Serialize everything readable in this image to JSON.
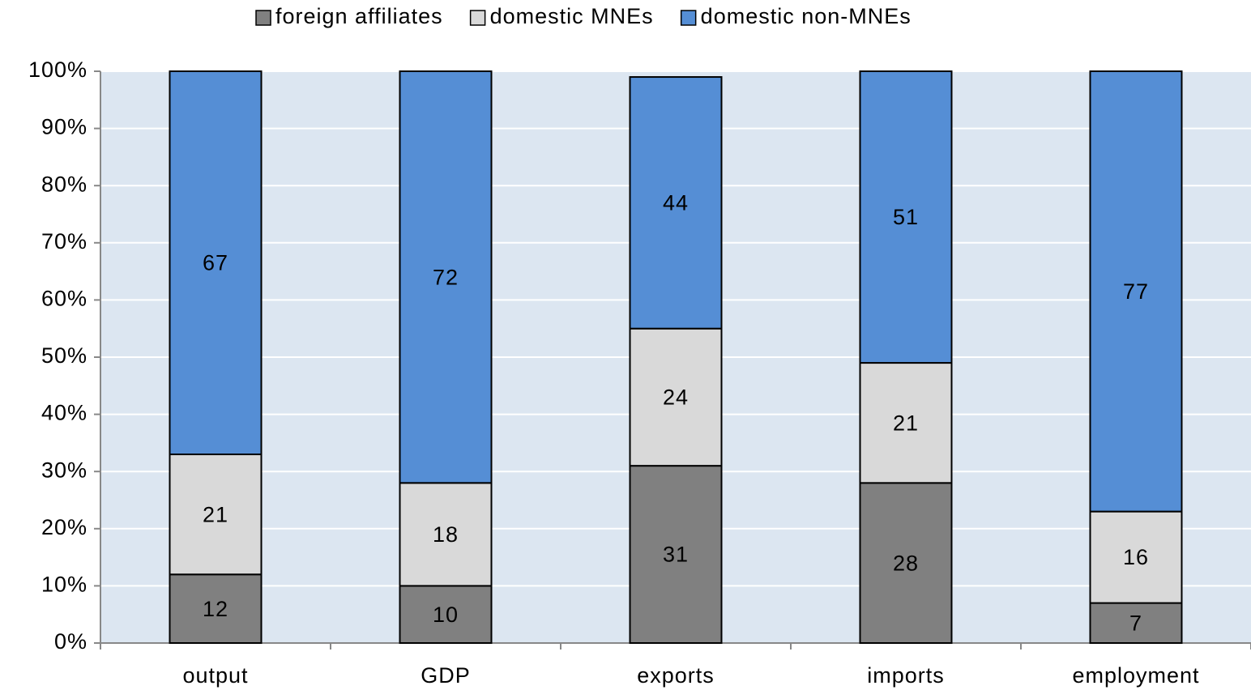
{
  "chart_data": {
    "type": "bar",
    "stacked": true,
    "categories": [
      "output",
      "GDP",
      "exports",
      "imports",
      "employment"
    ],
    "series": [
      {
        "name": "foreign affiliates",
        "color": "#808080",
        "values": [
          12,
          10,
          31,
          28,
          7
        ]
      },
      {
        "name": "domestic MNEs",
        "color": "#d9d9d9",
        "values": [
          21,
          18,
          24,
          21,
          16
        ]
      },
      {
        "name": "domestic non-MNEs",
        "color": "#558ed5",
        "values": [
          67,
          72,
          44,
          51,
          77
        ]
      }
    ],
    "ylim": [
      0,
      100
    ],
    "yticks": [
      {
        "value": 0,
        "label": "0%"
      },
      {
        "value": 10,
        "label": "10%"
      },
      {
        "value": 20,
        "label": "20%"
      },
      {
        "value": 30,
        "label": "30%"
      },
      {
        "value": 40,
        "label": "40%"
      },
      {
        "value": 50,
        "label": "50%"
      },
      {
        "value": 60,
        "label": "60%"
      },
      {
        "value": 70,
        "label": "70%"
      },
      {
        "value": 80,
        "label": "80%"
      },
      {
        "value": 90,
        "label": "90%"
      },
      {
        "value": 100,
        "label": "100%"
      }
    ],
    "grid": true,
    "legend": "top",
    "plot_background": "#dce6f1"
  }
}
